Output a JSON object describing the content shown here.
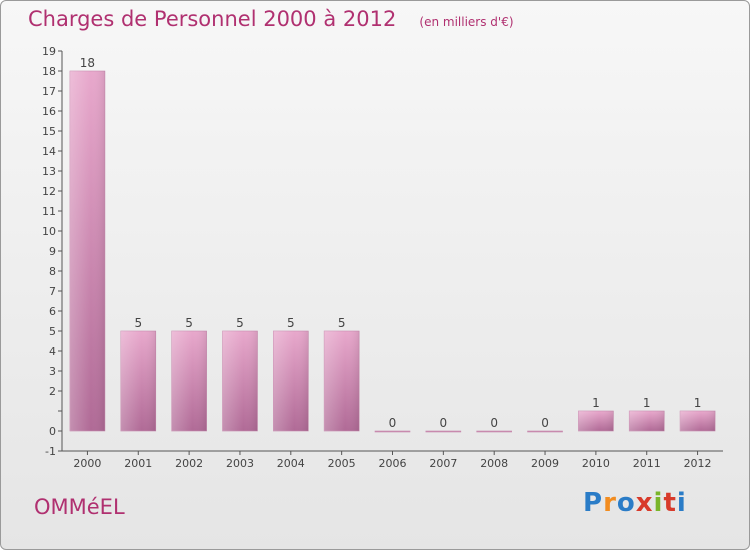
{
  "header": {
    "title": "Charges de Personnel 2000 à 2012",
    "subtitle": "(en milliers d'€)"
  },
  "footer": {
    "commune": "OMMéEL",
    "logo": {
      "text": "Proxiti",
      "letters": [
        "P",
        "r",
        "o",
        "x",
        "i",
        "t",
        "i"
      ],
      "colors": [
        "#2a7cc7",
        "#f28c1f",
        "#2a7cc7",
        "#d83a2a",
        "#7ab52a",
        "#d83a2a",
        "#2a7cc7"
      ]
    }
  },
  "colors": {
    "bar_light": "#e8a8cc",
    "bar_dark": "#b06a96",
    "axis": "#555555",
    "title": "#b03070"
  },
  "chart_data": {
    "type": "bar",
    "title": "Charges de Personnel 2000 à 2012",
    "subtitle": "(en milliers d'€)",
    "categories": [
      "2000",
      "2001",
      "2002",
      "2003",
      "2004",
      "2005",
      "2006",
      "2007",
      "2008",
      "2009",
      "2010",
      "2011",
      "2012"
    ],
    "values": [
      18,
      5,
      5,
      5,
      5,
      5,
      0,
      0,
      0,
      0,
      1,
      1,
      1
    ],
    "data_labels": [
      "18",
      "5",
      "5",
      "5",
      "5",
      "5",
      "0",
      "0",
      "0",
      "0",
      "1",
      "1",
      "1"
    ],
    "ylim": [
      -1,
      19
    ],
    "yticks": [
      -1,
      0,
      1,
      2,
      3,
      4,
      5,
      6,
      7,
      8,
      9,
      10,
      11,
      12,
      13,
      14,
      15,
      16,
      17,
      18,
      19
    ],
    "ytick_labels": [
      "-1",
      "0",
      "",
      "2",
      "3",
      "4",
      "5",
      "6",
      "7",
      "8",
      "9",
      "10",
      "11",
      "12",
      "13",
      "14",
      "15",
      "16",
      "17",
      "18",
      "19"
    ],
    "grid": false,
    "legend": "none"
  }
}
